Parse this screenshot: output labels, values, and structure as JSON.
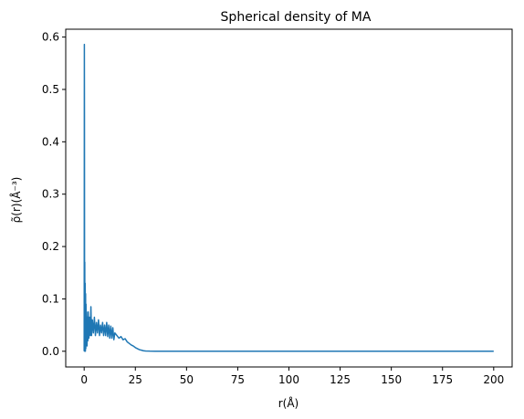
{
  "chart_data": {
    "type": "line",
    "title": "Spherical density of MA",
    "xlabel": "r(Å)",
    "ylabel": "ρ̃(r)(Å⁻³)",
    "xlim": [
      -9,
      209
    ],
    "ylim": [
      -0.03,
      0.615
    ],
    "xticks": [
      0,
      25,
      50,
      75,
      100,
      125,
      150,
      175,
      200
    ],
    "yticks": [
      0.0,
      0.1,
      0.2,
      0.3,
      0.4,
      0.5,
      0.6
    ],
    "ytick_labels": [
      "0.0",
      "0.1",
      "0.2",
      "0.3",
      "0.4",
      "0.5",
      "0.6"
    ],
    "grid": false,
    "legend": "none",
    "series": [
      {
        "color": "#1f77b4",
        "x": [
          0,
          0.05,
          0.1,
          0.15,
          0.2,
          0.25,
          0.3,
          0.35,
          0.4,
          0.5,
          0.6,
          0.7,
          0.8,
          0.9,
          1.0,
          1.2,
          1.4,
          1.6,
          1.8,
          2.0,
          2.3,
          2.6,
          3.0,
          3.3,
          3.6,
          4.0,
          4.5,
          5.0,
          5.5,
          6.0,
          6.5,
          7.0,
          7.5,
          8.0,
          8.5,
          9.0,
          9.5,
          10.0,
          10.5,
          11.0,
          11.5,
          12.0,
          12.5,
          13.0,
          13.5,
          14.0,
          14.5,
          15.0,
          16.0,
          17.0,
          18.0,
          19.0,
          20.0,
          21.0,
          22.0,
          23.0,
          24.0,
          25.0,
          26.0,
          27.0,
          28.0,
          29.0,
          30.0,
          32.0,
          35.0,
          40.0,
          50.0,
          75.0,
          100.0,
          125.0,
          150.0,
          175.0,
          200.0
        ],
        "y": [
          0.0,
          0.2,
          0.586,
          0.45,
          0.1,
          0.0,
          0.17,
          0.02,
          0.0,
          0.13,
          0.0,
          0.11,
          0.005,
          0.09,
          0.02,
          0.075,
          0.01,
          0.065,
          0.02,
          0.075,
          0.025,
          0.065,
          0.03,
          0.085,
          0.03,
          0.06,
          0.035,
          0.065,
          0.03,
          0.055,
          0.035,
          0.06,
          0.03,
          0.05,
          0.035,
          0.055,
          0.03,
          0.05,
          0.03,
          0.055,
          0.028,
          0.05,
          0.025,
          0.048,
          0.025,
          0.045,
          0.022,
          0.035,
          0.03,
          0.025,
          0.028,
          0.022,
          0.024,
          0.018,
          0.015,
          0.012,
          0.01,
          0.007,
          0.005,
          0.003,
          0.002,
          0.001,
          0.0005,
          0.0002,
          0.0,
          0.0,
          0.0,
          0.0,
          0.0,
          0.0,
          0.0,
          0.0,
          0.0
        ]
      }
    ]
  }
}
